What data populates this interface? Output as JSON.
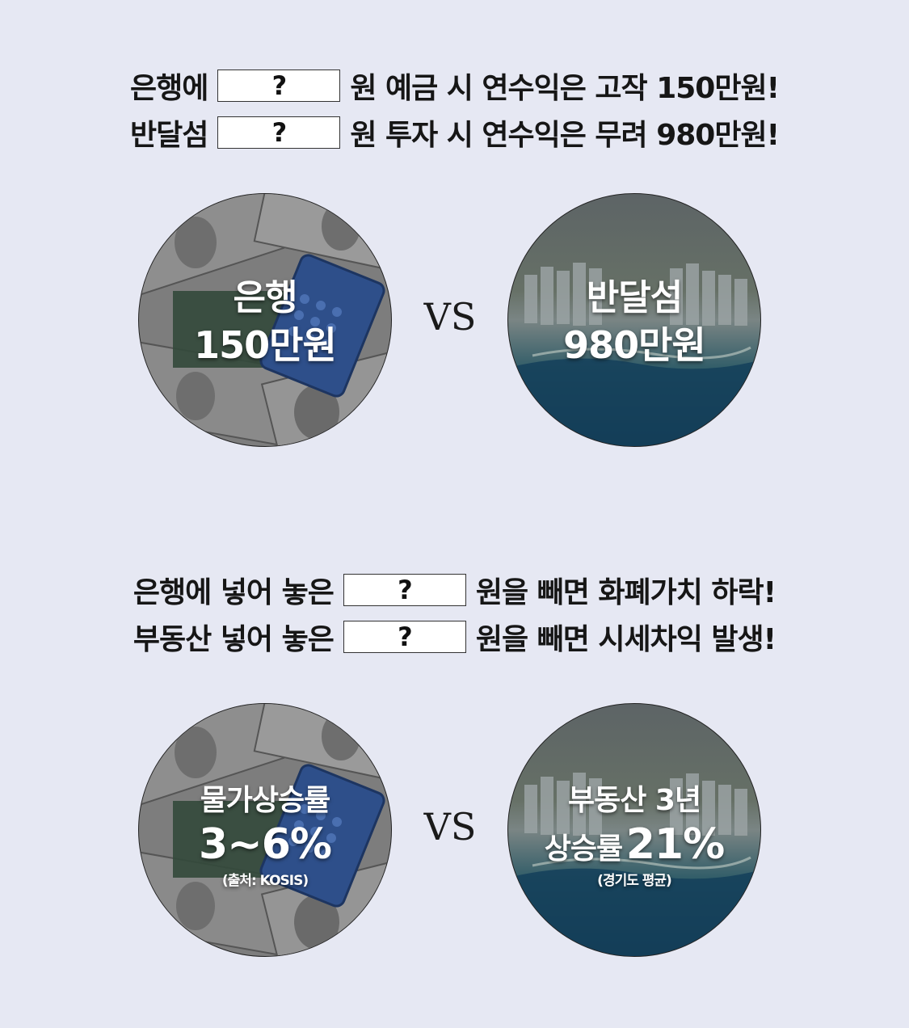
{
  "section1": {
    "line1": {
      "before": "은행에",
      "box": "?",
      "after": "원 예금 시 연수익은 고작 150만원!"
    },
    "line2": {
      "before": "반달섬",
      "box": "?",
      "after": "원 투자 시 연수익은 무려 980만원!"
    },
    "left_circle": {
      "line1": "은행",
      "line2": "150만원"
    },
    "vs": "VS",
    "right_circle": {
      "line1": "반달섬",
      "line2": "980만원"
    }
  },
  "section2": {
    "line1": {
      "before": "은행에 넣어 놓은",
      "box": "?",
      "after": "원을 빼면 화폐가치 하락!"
    },
    "line2": {
      "before": "부동산 넣어 놓은",
      "box": "?",
      "after": "원을 빼면 시세차익 발생!"
    },
    "left_circle": {
      "line1": "물가상승률",
      "line2": "3~6%",
      "note": "(출처: KOSIS)"
    },
    "vs": "VS",
    "right_circle": {
      "line1": "부동산 3년",
      "line2_prefix": "상승률",
      "line2_value": "21%",
      "note": "(경기도 평균)"
    }
  },
  "colors": {
    "background": "#e6e8f3",
    "text": "#161616",
    "box": "#ffffff"
  },
  "images": {
    "money_bg": "dollar-bills-calculator",
    "city_bg": "coastal-city-aerial"
  }
}
